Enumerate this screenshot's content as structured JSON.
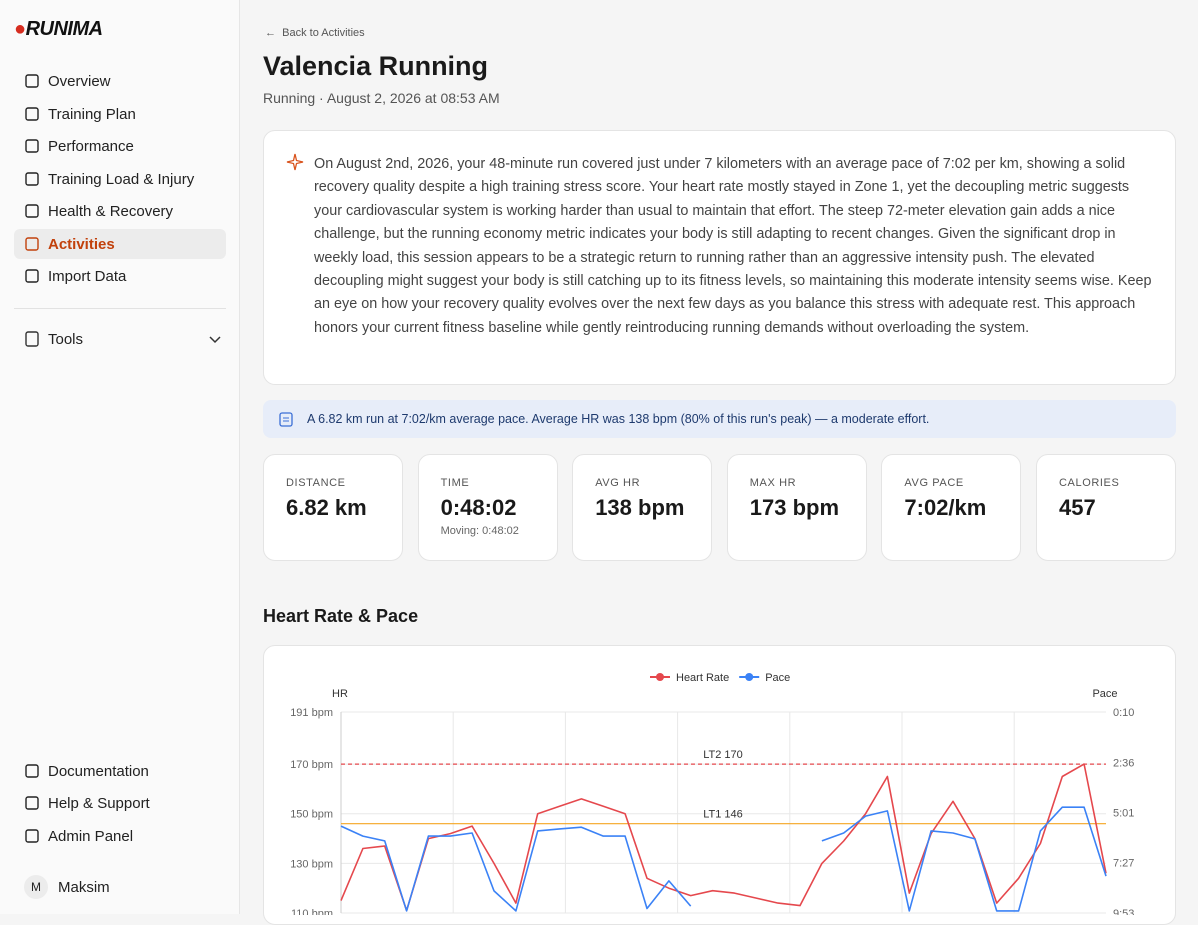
{
  "sidebar": {
    "brand": "RUNIMA",
    "nav": [
      "Overview",
      "Training Plan",
      "Performance",
      "Training Load & Injury",
      "Health & Recovery",
      "Activities",
      "Import Data"
    ],
    "active": "Activities",
    "tools": "Tools",
    "footer_nav": [
      "Documentation",
      "Help & Support",
      "Admin Panel"
    ],
    "user": {
      "initial": "M",
      "name": "Maksim"
    }
  },
  "header": {
    "back": "Back to Activities",
    "title": "Valencia Running",
    "subtitle": "Running · August 2, 2026 at 08:53 AM"
  },
  "summary": "On August 2nd, 2026, your 48-minute run covered just under 7 kilometers with an average pace of 7:02 per km, showing a solid recovery quality despite a high training stress score. Your heart rate mostly stayed in Zone 1, yet the decoupling metric suggests your cardiovascular system is working harder than usual to maintain that effort. The steep 72-meter elevation gain adds a nice challenge, but the running economy metric indicates your body is still adapting to recent changes. Given the significant drop in weekly load, this session appears to be a strategic return to running rather than an aggressive intensity push. The elevated decoupling might suggest your body is still catching up to its fitness levels, so maintaining this moderate intensity seems wise. Keep an eye on how your recovery quality evolves over the next few days as you balance this stress with adequate rest. This approach honors your current fitness baseline while gently reintroducing running demands without overloading the system.",
  "banner": "A 6.82 km run at 7:02/km average pace. Average HR was 138 bpm (80% of this run's peak) — a moderate effort.",
  "stats": [
    {
      "label": "DISTANCE",
      "value": "6.82 km"
    },
    {
      "label": "TIME",
      "value": "0:48:02",
      "sub": "Moving: 0:48:02"
    },
    {
      "label": "AVG HR",
      "value": "138 bpm"
    },
    {
      "label": "MAX HR",
      "value": "173 bpm"
    },
    {
      "label": "AVG PACE",
      "value": "7:02/km"
    },
    {
      "label": "CALORIES",
      "value": "457"
    }
  ],
  "section_title": "Heart Rate & Pace",
  "chart_data": {
    "type": "line",
    "ylabel": "HR",
    "y2label": "Pace",
    "ylim": [
      110,
      191
    ],
    "yticks": [
      {
        "value": 191,
        "label": "191 bpm"
      },
      {
        "value": 170,
        "label": "170 bpm"
      },
      {
        "value": 150,
        "label": "150 bpm"
      },
      {
        "value": 130,
        "label": "130 bpm"
      },
      {
        "value": 110,
        "label": "110 bpm"
      }
    ],
    "y2lim": [
      10,
      593
    ],
    "y2_reversed": true,
    "y2ticks": [
      {
        "value": 10,
        "label": "0:10"
      },
      {
        "value": 156,
        "label": "2:36"
      },
      {
        "value": 301,
        "label": "5:01"
      },
      {
        "value": 447,
        "label": "7:27"
      },
      {
        "value": 593,
        "label": "9:53"
      }
    ],
    "grid": true,
    "legend": "top",
    "reference_lines": [
      {
        "label": "LT2 170",
        "value": 170,
        "color": "#e5484d",
        "dashed": true
      },
      {
        "label": "LT1 146",
        "value": 146,
        "color": "#f5a623",
        "dashed": false
      }
    ],
    "series": [
      {
        "name": "Heart Rate",
        "color": "#e5484d",
        "values": [
          115,
          136,
          137,
          111,
          140,
          142,
          145,
          130,
          114,
          150,
          153,
          156,
          153,
          150,
          124,
          120,
          117,
          119,
          118,
          116,
          114,
          113,
          130,
          139,
          150,
          165,
          118,
          142,
          155,
          140,
          114,
          124,
          138,
          165,
          170,
          126
        ]
      },
      {
        "name": "Pace",
        "color": "#3b82f6",
        "axis": "y2",
        "values": [
          341,
          370,
          384,
          587,
          370,
          370,
          361,
          529,
          587,
          355,
          349,
          344,
          370,
          370,
          580,
          500,
          573,
          null,
          null,
          null,
          null,
          null,
          384,
          361,
          312,
          297,
          587,
          355,
          361,
          378,
          587,
          587,
          355,
          286,
          286,
          486
        ]
      }
    ]
  }
}
